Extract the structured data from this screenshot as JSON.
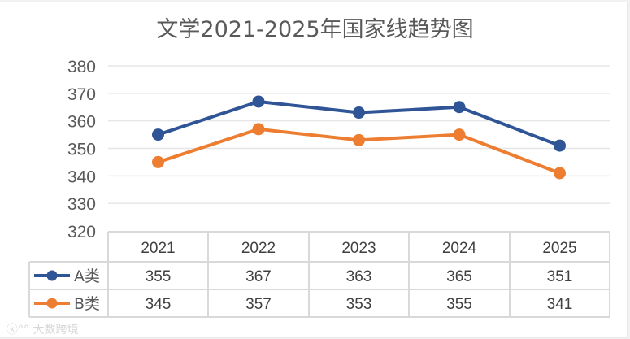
{
  "chart_data": {
    "type": "line",
    "title": "文学2021-2025年国家线趋势图",
    "categories": [
      "2021",
      "2022",
      "2023",
      "2024",
      "2025"
    ],
    "series": [
      {
        "name": "A类",
        "color": "#2F5597",
        "values": [
          355,
          367,
          363,
          365,
          351
        ]
      },
      {
        "name": "B类",
        "color": "#ED7D31",
        "values": [
          345,
          357,
          353,
          355,
          341
        ]
      }
    ],
    "xlabel": "",
    "ylabel": "",
    "ylim": [
      320,
      380
    ],
    "yticks": [
      320,
      330,
      340,
      350,
      360,
      370,
      380
    ],
    "grid": true,
    "legend_position": "data-table",
    "data_table": true
  },
  "watermark": "大数跨境"
}
